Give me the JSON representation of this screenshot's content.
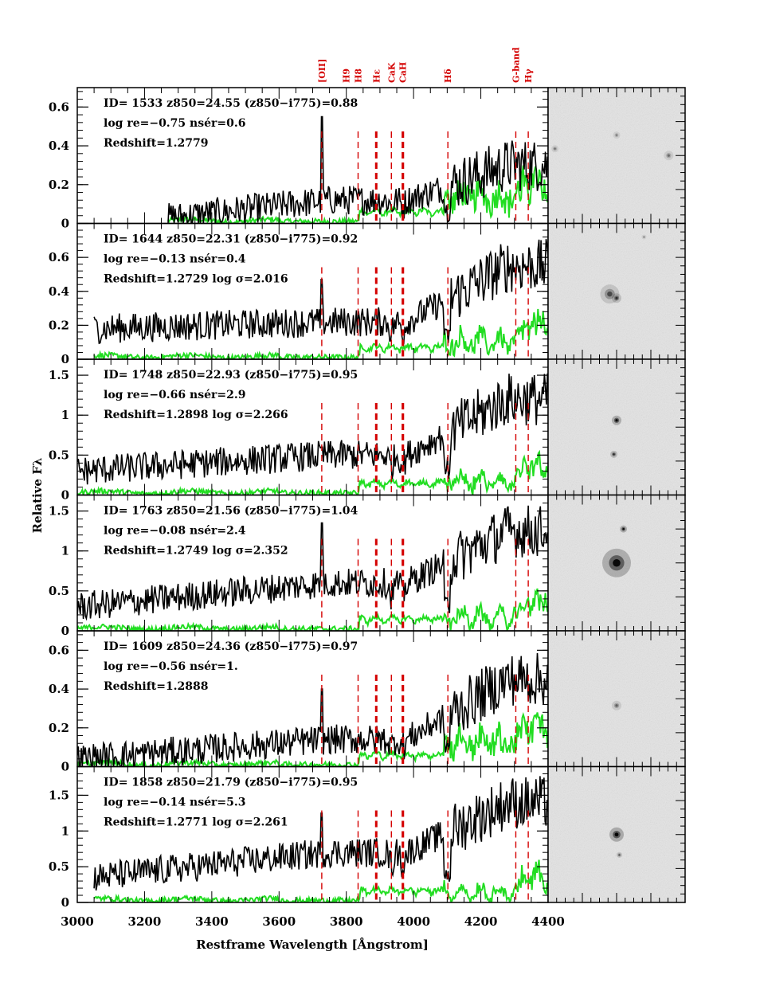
{
  "chart_data": {
    "type": "line",
    "xlabel": "Restframe Wavelength [Ångstrom]",
    "ylabel": "Relative Fλ",
    "xlim": [
      3000,
      4400
    ],
    "x_ticks": [
      "3000",
      "3200",
      "3400",
      "3600",
      "3800",
      "4000",
      "4200",
      "4400"
    ],
    "line_markers": [
      {
        "label": "[OII]",
        "wavelength": 3727
      },
      {
        "label": "H9",
        "wavelength": 3835
      },
      {
        "label": "H8",
        "wavelength": 3889
      },
      {
        "label": "Hε",
        "wavelength": 3970
      },
      {
        "label": "CaK",
        "wavelength": 3934
      },
      {
        "label": "CaH",
        "wavelength": 3968
      },
      {
        "label": "Hδ",
        "wavelength": 4102
      },
      {
        "label": "G-band",
        "wavelength": 4304
      },
      {
        "label": "Hγ",
        "wavelength": 4341
      }
    ],
    "series_colors": {
      "spectrum": "#000000",
      "noise": "#22dd22",
      "markers": "#d40000"
    },
    "panels": [
      {
        "ylim": [
          0,
          0.7
        ],
        "y_ticks": [
          "0",
          "0.2",
          "0.4",
          "0.6"
        ],
        "info": [
          "ID= 1533   z850=24.55  (z850−i775)=0.88",
          "log re=−0.75   nsér=0.6",
          "Redshift=1.2779"
        ],
        "start": 3270,
        "level": [
          0.03,
          0.12,
          0.3
        ],
        "spike": 0.55,
        "noise": 0.3,
        "thumb_blobs": [
          [
            0.05,
            0.45,
            1.5,
            0.35
          ],
          [
            0.5,
            0.35,
            1.5,
            0.3
          ],
          [
            0.88,
            0.5,
            2,
            0.35
          ]
        ]
      },
      {
        "ylim": [
          0,
          0.8
        ],
        "y_ticks": [
          "0",
          "0.2",
          "0.4",
          "0.6"
        ],
        "info": [
          "ID= 1644   z850=22.31  (z850−i775)=0.92",
          "log re=−0.13   nsér=0.4",
          "Redshift=1.2729   log σ=2.016"
        ],
        "start": 3050,
        "level": [
          0.18,
          0.22,
          0.55
        ],
        "spike": 0.47,
        "noise": 0.2,
        "thumb_blobs": [
          [
            0.45,
            0.52,
            4,
            0.5
          ],
          [
            0.5,
            0.55,
            2,
            0.6
          ],
          [
            0.7,
            0.1,
            1,
            0.3
          ]
        ]
      },
      {
        "ylim": [
          0,
          1.7
        ],
        "y_ticks": [
          "0",
          "0.5",
          "1",
          "1.5"
        ],
        "info": [
          "ID= 1748   z850=22.93  (z850−i775)=0.95",
          "log re=−0.66   nsér=2.9",
          "Redshift=1.2898   log σ=2.266"
        ],
        "start": 3000,
        "level": [
          0.3,
          0.5,
          1.2
        ],
        "spike": 0.6,
        "noise": 0.15,
        "thumb_blobs": [
          [
            0.5,
            0.45,
            2,
            0.9
          ],
          [
            0.48,
            0.7,
            1.5,
            0.7
          ]
        ]
      },
      {
        "ylim": [
          0,
          1.7
        ],
        "y_ticks": [
          "0",
          "0.5",
          "1",
          "1.5"
        ],
        "info": [
          "ID= 1763   z850=21.56  (z850−i775)=1.04",
          "log re=−0.08   nsér=2.4",
          "Redshift=1.2749   log σ=2.352"
        ],
        "start": 3000,
        "level": [
          0.3,
          0.6,
          1.25
        ],
        "spike": 1.35,
        "noise": 0.15,
        "thumb_blobs": [
          [
            0.5,
            0.5,
            6,
            0.9
          ],
          [
            0.55,
            0.25,
            1.5,
            0.9
          ]
        ]
      },
      {
        "ylim": [
          0,
          0.7
        ],
        "y_ticks": [
          "0",
          "0.2",
          "0.4",
          "0.6"
        ],
        "info": [
          "ID= 1609   z850=24.36  (z850−i775)=0.97",
          "log re=−0.56   nsér=1.",
          "Redshift=1.2888"
        ],
        "start": 3000,
        "level": [
          0.04,
          0.14,
          0.45
        ],
        "spike": 0.4,
        "noise": 0.28,
        "thumb_blobs": [
          [
            0.5,
            0.55,
            2,
            0.4
          ]
        ]
      },
      {
        "ylim": [
          0,
          1.9
        ],
        "y_ticks": [
          "0",
          "0.5",
          "1",
          "1.5"
        ],
        "info": [
          "ID= 1858   z850=21.79  (z850−i775)=0.95",
          "log re=−0.14   nsér=5.3",
          "Redshift=1.2771   log σ=2.261"
        ],
        "start": 3050,
        "level": [
          0.35,
          0.7,
          1.4
        ],
        "spike": 1.25,
        "noise": 0.12,
        "thumb_blobs": [
          [
            0.5,
            0.5,
            3,
            0.95
          ],
          [
            0.52,
            0.65,
            1.2,
            0.5
          ]
        ]
      }
    ]
  }
}
